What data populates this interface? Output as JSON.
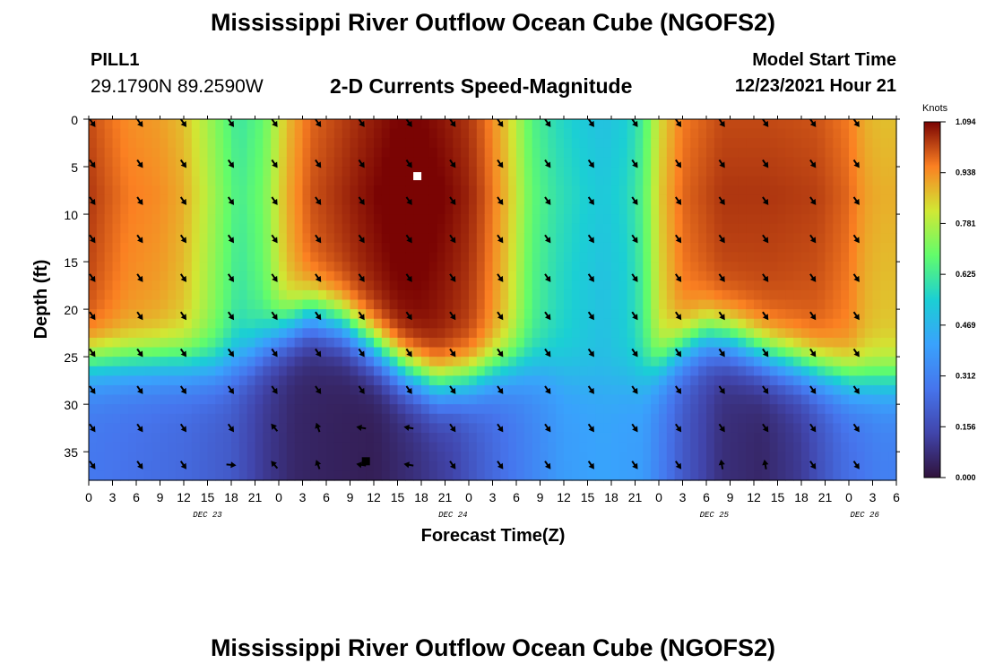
{
  "header": {
    "title": "Mississippi River Outflow Ocean Cube (NGOFS2)",
    "station_id": "PILL1",
    "station_coords": "29.1790N  89.2590W",
    "subtitle": "2-D Currents Speed-Magnitude",
    "model_start_label": "Model Start Time",
    "model_start_value": "12/23/2021 Hour 21"
  },
  "footer": {
    "title": "Mississippi River Outflow Ocean Cube (NGOFS2)"
  },
  "chart_data": {
    "type": "heatmap",
    "title": "2-D Currents Speed-Magnitude",
    "xlabel": "Forecast Time(Z)",
    "ylabel": "Depth (ft)",
    "x_tick_labels": [
      "0",
      "3",
      "6",
      "9",
      "12",
      "15",
      "18",
      "21",
      "0",
      "3",
      "6",
      "9",
      "12",
      "15",
      "18",
      "21",
      "0",
      "3",
      "6",
      "9",
      "12",
      "15",
      "18",
      "21",
      "0",
      "3",
      "6",
      "9",
      "12",
      "15",
      "18",
      "21",
      "0",
      "3",
      "6"
    ],
    "x_range_hours": [
      0,
      102
    ],
    "y_ticks": [
      0,
      5,
      10,
      15,
      20,
      25,
      30,
      35
    ],
    "ylim": [
      0,
      38
    ],
    "y_inverted": true,
    "date_labels": [
      {
        "text": "DEC 23",
        "hour": 15
      },
      {
        "text": "DEC 24",
        "hour": 46
      },
      {
        "text": "DEC 25",
        "hour": 79
      },
      {
        "text": "DEC 26",
        "hour": 98
      }
    ],
    "colorbar": {
      "unit": "Knots",
      "min": 0.0,
      "max": 1.094,
      "tick_labels": [
        "1.094",
        "0.938",
        "0.781",
        "0.625",
        "0.469",
        "0.312",
        "0.156",
        "0.000"
      ]
    },
    "speed_features": [
      {
        "name": "max-surface-dec24",
        "hour": 41.5,
        "depth": 6,
        "speed": 1.094
      },
      {
        "name": "min-bottom-dec24",
        "hour": 35,
        "depth": 36,
        "speed": 0.0
      }
    ],
    "arrow_hours": [
      0,
      6,
      11.5,
      17.5,
      23,
      28.5,
      34,
      40,
      45.5,
      51.5,
      57.5,
      63,
      68.5,
      74,
      79.5,
      85,
      91,
      96.5
    ],
    "arrow_depths": [
      0,
      4.3,
      8.2,
      12.2,
      16.3,
      20.3,
      24.2,
      28.1,
      32.1,
      36
    ]
  },
  "colors": {
    "max_marker": "#ffffff",
    "min_marker": "#000000",
    "arrow": "#000000"
  }
}
